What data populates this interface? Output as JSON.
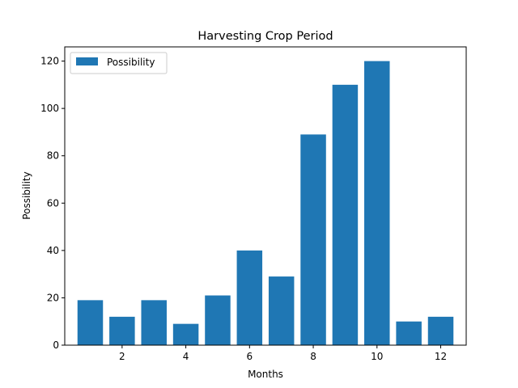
{
  "chart_data": {
    "type": "bar",
    "title": "Harvesting Crop Period",
    "xlabel": "Months",
    "ylabel": "Possibility",
    "x": [
      1,
      2,
      3,
      4,
      5,
      6,
      7,
      8,
      9,
      10,
      11,
      12
    ],
    "series": [
      {
        "name": "Possibility",
        "values": [
          19,
          12,
          19,
          9,
          21,
          40,
          29,
          89,
          110,
          120,
          10,
          12
        ],
        "color": "#1f77b4"
      }
    ],
    "xticks": [
      "2",
      "4",
      "6",
      "8",
      "10",
      "12"
    ],
    "yticks": [
      "0",
      "20",
      "40",
      "60",
      "80",
      "100",
      "120"
    ],
    "xlim": [
      0.2,
      12.8
    ],
    "ylim": [
      0,
      126
    ],
    "bar_width": 0.8,
    "legend_position": "top-left",
    "grid": false
  }
}
